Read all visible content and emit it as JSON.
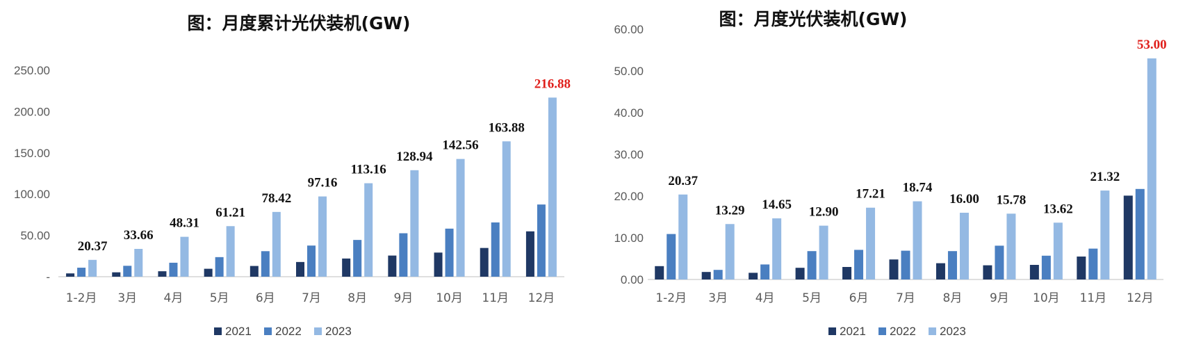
{
  "colors": {
    "series_2021": "#1f3864",
    "series_2022": "#4a7fc1",
    "series_2023": "#94b9e3",
    "highlight": "#e0201c",
    "axis": "#bfbfbf"
  },
  "chart_data": [
    {
      "type": "bar",
      "title": "图：月度累计光伏装机(GW)",
      "xlabel": "",
      "ylabel": "",
      "ylim": [
        0,
        250
      ],
      "yticks": [
        0,
        50,
        100,
        150,
        200,
        250
      ],
      "ytick_labels": [
        "-",
        "50.00",
        "100.00",
        "150.00",
        "200.00",
        "250.00"
      ],
      "grid": false,
      "legend_position": "bottom-center",
      "categories": [
        "1-2月",
        "3月",
        "4月",
        "5月",
        "6月",
        "7月",
        "8月",
        "9月",
        "10月",
        "11月",
        "12月"
      ],
      "series": [
        {
          "name": "2021",
          "values": [
            4.0,
            5.3,
            6.6,
            9.6,
            13.0,
            17.8,
            22.0,
            25.6,
            29.2,
            34.8,
            54.9
          ]
        },
        {
          "name": "2022",
          "values": [
            10.9,
            13.2,
            16.9,
            23.7,
            30.9,
            37.7,
            44.5,
            52.6,
            58.2,
            65.7,
            87.4
          ]
        },
        {
          "name": "2023",
          "values": [
            20.37,
            33.66,
            48.31,
            61.21,
            78.42,
            97.16,
            113.16,
            128.94,
            142.56,
            163.88,
            216.88
          ]
        }
      ],
      "data_labels": [
        "20.37",
        "33.66",
        "48.31",
        "61.21",
        "78.42",
        "97.16",
        "113.16",
        "128.94",
        "142.56",
        "163.88",
        "216.88"
      ],
      "highlight_index": 10
    },
    {
      "type": "bar",
      "title": "图：月度光伏装机(GW)",
      "xlabel": "",
      "ylabel": "",
      "ylim": [
        0,
        60
      ],
      "yticks": [
        0,
        10,
        20,
        30,
        40,
        50,
        60
      ],
      "ytick_labels": [
        "0.00",
        "10.00",
        "20.00",
        "30.00",
        "40.00",
        "50.00",
        "60.00"
      ],
      "grid": false,
      "legend_position": "bottom-center",
      "categories": [
        "1-2月",
        "3月",
        "4月",
        "5月",
        "6月",
        "7月",
        "8月",
        "9月",
        "10月",
        "11月",
        "12月"
      ],
      "series": [
        {
          "name": "2021",
          "values": [
            3.2,
            1.8,
            1.6,
            2.8,
            3.0,
            4.8,
            3.9,
            3.4,
            3.5,
            5.5,
            20.1
          ]
        },
        {
          "name": "2022",
          "values": [
            10.9,
            2.3,
            3.6,
            6.8,
            7.1,
            6.9,
            6.8,
            8.1,
            5.7,
            7.4,
            21.7
          ]
        },
        {
          "name": "2023",
          "values": [
            20.37,
            13.29,
            14.65,
            12.9,
            17.21,
            18.74,
            16.0,
            15.78,
            13.62,
            21.32,
            53.0
          ]
        }
      ],
      "data_labels": [
        "20.37",
        "13.29",
        "14.65",
        "12.90",
        "17.21",
        "18.74",
        "16.00",
        "15.78",
        "13.62",
        "21.32",
        "53.00"
      ],
      "highlight_index": 10
    }
  ]
}
